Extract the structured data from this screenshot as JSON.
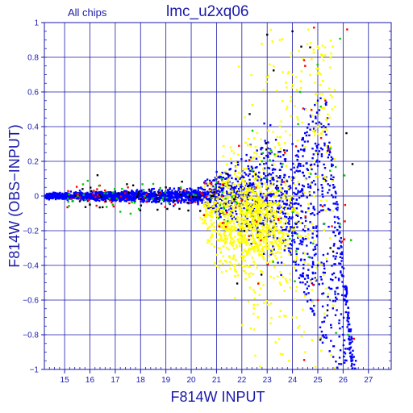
{
  "header": {
    "left_label": "All chips",
    "title": "lmc_u2xq06"
  },
  "colors": {
    "axis": "#1a1aa8",
    "grid": "#1a1aa8",
    "text": "#1a1aa8",
    "points_main": "#0000ff",
    "points_yellow": "#ffff00",
    "points_red": "#ff0000",
    "points_green": "#00c800",
    "points_black": "#000000"
  },
  "chart_data": {
    "type": "scatter",
    "title": "lmc_u2xq06",
    "subtitle": "All chips",
    "xlabel": "F814W INPUT",
    "ylabel": "F814W (OBS−INPUT)",
    "xlim": [
      14.2,
      27.9
    ],
    "ylim": [
      -1,
      1
    ],
    "x_ticks": [
      15,
      16,
      17,
      18,
      19,
      20,
      21,
      22,
      23,
      24,
      25,
      26,
      27
    ],
    "x_tick_labels": [
      "15",
      "16",
      "17",
      "18",
      "19",
      "20",
      "21",
      "22",
      "23",
      "24",
      "25",
      "26",
      "27"
    ],
    "y_ticks": [
      1,
      0.8,
      0.6,
      0.4,
      0.2,
      0,
      -0.2,
      -0.4,
      -0.6,
      -0.8,
      -1
    ],
    "y_tick_labels": [
      "1",
      "0.8",
      "0.6",
      "0.4",
      "0.2",
      "0",
      "−0.2",
      "−0.4",
      "−0.6",
      "−0.8",
      "−1"
    ],
    "grid": true,
    "legend": "none",
    "series": [
      {
        "values_description": "dense band at y≈0 for x 14.2–20.5, widening into a fan up to +0.6 and down to −1 at x 23–26.5",
        "points": [
          [
            14.5,
            0.01
          ],
          [
            15.0,
            0.0
          ],
          [
            15.5,
            0.01
          ],
          [
            16.0,
            -0.01
          ],
          [
            16.5,
            0.0
          ],
          [
            17.0,
            0.01
          ],
          [
            17.5,
            -0.01
          ],
          [
            18.0,
            0.0
          ],
          [
            18.5,
            0.01
          ],
          [
            19.0,
            -0.01
          ],
          [
            19.5,
            0.0
          ],
          [
            20.0,
            0.01
          ],
          [
            20.5,
            -0.02
          ],
          [
            21.0,
            0.02
          ],
          [
            21.5,
            -0.03
          ],
          [
            22.0,
            -0.05
          ],
          [
            22.5,
            0.05
          ],
          [
            23.0,
            -0.1
          ],
          [
            23.5,
            0.15
          ],
          [
            24.0,
            0.3
          ],
          [
            24.5,
            0.5
          ],
          [
            25.0,
            0.55
          ],
          [
            25.0,
            -0.4
          ],
          [
            25.5,
            -0.6
          ],
          [
            26.0,
            -0.8
          ],
          [
            26.5,
            -0.95
          ]
        ]
      },
      {
        "values_description": "yellow cloud centred near x≈22.5, y≈−0.15 spreading to −1 at faint end",
        "points": [
          [
            20.5,
            -0.05
          ],
          [
            21.0,
            -0.1
          ],
          [
            21.5,
            -0.15
          ],
          [
            22.0,
            -0.1
          ],
          [
            22.5,
            -0.15
          ],
          [
            23.0,
            -0.3
          ],
          [
            23.5,
            -0.5
          ],
          [
            24.0,
            -0.7
          ],
          [
            24.5,
            -0.9
          ],
          [
            25.0,
            0.4
          ],
          [
            24.0,
            0.7
          ],
          [
            23.5,
            0.9
          ]
        ]
      },
      {
        "values_description": "sparse red points along the band edges",
        "points": [
          [
            17.5,
            0.05
          ],
          [
            20.8,
            0.07
          ],
          [
            23.7,
            0.25
          ],
          [
            24.5,
            0.75
          ],
          [
            25.3,
            0.55
          ],
          [
            25.0,
            -0.6
          ]
        ]
      },
      {
        "values_description": "sparse green points along the band edges",
        "points": [
          [
            18.5,
            0.07
          ],
          [
            21.2,
            0.1
          ],
          [
            22.8,
            0.2
          ],
          [
            24.3,
            0.6
          ],
          [
            26.2,
            -0.8
          ]
        ]
      },
      {
        "values_description": "sparse black points",
        "points": [
          [
            16.3,
            0.12
          ],
          [
            16.0,
            -0.05
          ],
          [
            19.0,
            0.05
          ],
          [
            23.0,
            0.93
          ],
          [
            24.0,
            0.95
          ],
          [
            25.5,
            -0.3
          ]
        ]
      }
    ]
  }
}
